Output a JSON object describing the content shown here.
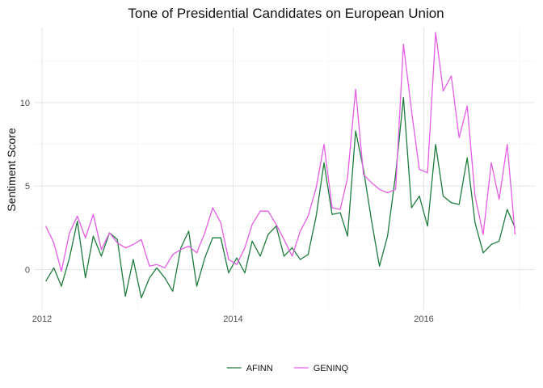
{
  "chart_data": {
    "type": "line",
    "title": "Tone of Presidential Candidates on European Union",
    "xlabel": "",
    "ylabel": "Sentiment Score",
    "xlim": [
      "2011-12-01",
      "2017-03-01"
    ],
    "ylim": [
      -2.4,
      14.5
    ],
    "x_ticks": [
      "2012",
      "2014",
      "2016"
    ],
    "y_ticks": [
      0,
      5,
      10
    ],
    "grid": true,
    "legend_position": "bottom",
    "series": [
      {
        "name": "AFINN",
        "color": "#1e7b3d",
        "points": [
          [
            "2012-01-15",
            -0.7
          ],
          [
            "2012-02-15",
            0.1
          ],
          [
            "2012-03-15",
            -1.0
          ],
          [
            "2012-04-15",
            0.7
          ],
          [
            "2012-05-15",
            2.9
          ],
          [
            "2012-06-15",
            -0.5
          ],
          [
            "2012-07-15",
            2.0
          ],
          [
            "2012-08-15",
            0.8
          ],
          [
            "2012-09-15",
            2.2
          ],
          [
            "2012-10-15",
            1.8
          ],
          [
            "2012-11-15",
            -1.6
          ],
          [
            "2012-12-15",
            0.6
          ],
          [
            "2013-01-15",
            -1.7
          ],
          [
            "2013-02-15",
            -0.5
          ],
          [
            "2013-03-15",
            0.1
          ],
          [
            "2013-04-15",
            -0.5
          ],
          [
            "2013-05-15",
            -1.3
          ],
          [
            "2013-06-15",
            1.3
          ],
          [
            "2013-07-15",
            2.3
          ],
          [
            "2013-08-15",
            -1.0
          ],
          [
            "2013-09-15",
            0.7
          ],
          [
            "2013-10-15",
            1.9
          ],
          [
            "2013-11-15",
            1.9
          ],
          [
            "2013-12-15",
            -0.2
          ],
          [
            "2014-01-15",
            0.7
          ],
          [
            "2014-02-15",
            -0.2
          ],
          [
            "2014-03-15",
            1.7
          ],
          [
            "2014-04-15",
            0.8
          ],
          [
            "2014-05-15",
            2.1
          ],
          [
            "2014-06-15",
            2.6
          ],
          [
            "2014-07-15",
            0.8
          ],
          [
            "2014-08-15",
            1.3
          ],
          [
            "2014-09-15",
            0.6
          ],
          [
            "2014-10-15",
            0.9
          ],
          [
            "2014-11-15",
            3.2
          ],
          [
            "2014-12-15",
            6.4
          ],
          [
            "2015-01-15",
            3.3
          ],
          [
            "2015-02-15",
            3.4
          ],
          [
            "2015-03-15",
            2.0
          ],
          [
            "2015-04-15",
            8.3
          ],
          [
            "2015-05-15",
            6.0
          ],
          [
            "2015-06-15",
            2.9
          ],
          [
            "2015-07-15",
            0.2
          ],
          [
            "2015-08-15",
            2.0
          ],
          [
            "2015-09-15",
            5.7
          ],
          [
            "2015-10-15",
            10.3
          ],
          [
            "2015-11-15",
            3.7
          ],
          [
            "2015-12-15",
            4.4
          ],
          [
            "2016-01-15",
            2.6
          ],
          [
            "2016-02-15",
            7.5
          ],
          [
            "2016-03-15",
            4.4
          ],
          [
            "2016-04-15",
            4.0
          ],
          [
            "2016-05-15",
            3.9
          ],
          [
            "2016-06-15",
            6.7
          ],
          [
            "2016-07-15",
            2.8
          ],
          [
            "2016-08-15",
            1.0
          ],
          [
            "2016-09-15",
            1.5
          ],
          [
            "2016-10-15",
            1.7
          ],
          [
            "2016-11-15",
            3.6
          ],
          [
            "2016-12-15",
            2.5
          ]
        ]
      },
      {
        "name": "GENINQ",
        "color": "#e55ce6",
        "points": [
          [
            "2012-01-15",
            2.6
          ],
          [
            "2012-02-15",
            1.6
          ],
          [
            "2012-03-15",
            -0.1
          ],
          [
            "2012-04-15",
            2.2
          ],
          [
            "2012-05-15",
            3.2
          ],
          [
            "2012-06-15",
            1.9
          ],
          [
            "2012-07-15",
            3.3
          ],
          [
            "2012-08-15",
            1.2
          ],
          [
            "2012-09-15",
            2.2
          ],
          [
            "2012-10-15",
            1.6
          ],
          [
            "2012-11-15",
            1.3
          ],
          [
            "2012-12-15",
            1.5
          ],
          [
            "2013-01-15",
            1.8
          ],
          [
            "2013-02-15",
            0.2
          ],
          [
            "2013-03-15",
            0.3
          ],
          [
            "2013-04-15",
            0.1
          ],
          [
            "2013-05-15",
            0.9
          ],
          [
            "2013-06-15",
            1.2
          ],
          [
            "2013-07-15",
            1.4
          ],
          [
            "2013-08-15",
            1.0
          ],
          [
            "2013-09-15",
            2.2
          ],
          [
            "2013-10-15",
            3.7
          ],
          [
            "2013-11-15",
            2.8
          ],
          [
            "2013-12-15",
            0.6
          ],
          [
            "2014-01-15",
            0.3
          ],
          [
            "2014-02-15",
            1.3
          ],
          [
            "2014-03-15",
            2.7
          ],
          [
            "2014-04-15",
            3.5
          ],
          [
            "2014-05-15",
            3.5
          ],
          [
            "2014-06-15",
            2.7
          ],
          [
            "2014-07-15",
            1.8
          ],
          [
            "2014-08-15",
            0.8
          ],
          [
            "2014-09-15",
            2.3
          ],
          [
            "2014-10-15",
            3.2
          ],
          [
            "2014-11-15",
            4.9
          ],
          [
            "2014-12-15",
            7.5
          ],
          [
            "2015-01-15",
            3.7
          ],
          [
            "2015-02-15",
            3.6
          ],
          [
            "2015-03-15",
            5.5
          ],
          [
            "2015-04-15",
            10.8
          ],
          [
            "2015-05-15",
            5.7
          ],
          [
            "2015-06-15",
            5.2
          ],
          [
            "2015-07-15",
            4.8
          ],
          [
            "2015-08-15",
            4.6
          ],
          [
            "2015-09-15",
            4.8
          ],
          [
            "2015-10-15",
            13.5
          ],
          [
            "2015-11-15",
            9.5
          ],
          [
            "2015-12-15",
            6.0
          ],
          [
            "2016-01-15",
            5.8
          ],
          [
            "2016-02-15",
            14.2
          ],
          [
            "2016-03-15",
            10.7
          ],
          [
            "2016-04-15",
            11.6
          ],
          [
            "2016-05-15",
            7.9
          ],
          [
            "2016-06-15",
            9.8
          ],
          [
            "2016-07-15",
            4.4
          ],
          [
            "2016-08-15",
            2.1
          ],
          [
            "2016-09-15",
            6.4
          ],
          [
            "2016-10-15",
            4.2
          ],
          [
            "2016-11-15",
            7.5
          ],
          [
            "2016-12-15",
            2.1
          ]
        ]
      }
    ]
  }
}
